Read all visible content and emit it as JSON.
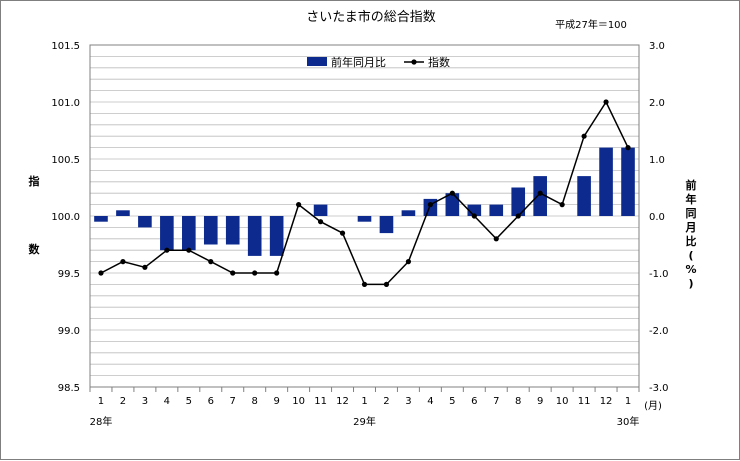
{
  "chart_data": {
    "type": "bar+line",
    "title": "さいたま市の総合指数",
    "subtitle": "平成27年＝100",
    "categories": [
      "1",
      "2",
      "3",
      "4",
      "5",
      "6",
      "7",
      "8",
      "9",
      "10",
      "11",
      "12",
      "1",
      "2",
      "3",
      "4",
      "5",
      "6",
      "7",
      "8",
      "9",
      "10",
      "11",
      "12",
      "1"
    ],
    "x_unit": "(月)",
    "year_labels": [
      {
        "label": "28年",
        "index": 0
      },
      {
        "label": "29年",
        "index": 12
      },
      {
        "label": "30年",
        "index": 24
      }
    ],
    "y_left": {
      "label": "指数",
      "min": 98.5,
      "max": 101.5,
      "ticks": [
        "98.5",
        "99.0",
        "99.5",
        "100.0",
        "100.5",
        "101.0",
        "101.5"
      ]
    },
    "y_right": {
      "label": "前年同月比(%)",
      "min": -3.0,
      "max": 3.0,
      "ticks": [
        "-3.0",
        "-2.0",
        "-1.0",
        "0.0",
        "1.0",
        "2.0",
        "3.0"
      ]
    },
    "series": [
      {
        "name": "前年同月比",
        "type": "bar",
        "axis": "right",
        "color": "#0d2b8f",
        "values": [
          -0.1,
          0.1,
          -0.2,
          -0.6,
          -0.6,
          -0.5,
          -0.5,
          -0.7,
          -0.7,
          0.0,
          0.2,
          0.0,
          -0.1,
          -0.3,
          0.1,
          0.3,
          0.4,
          0.2,
          0.2,
          0.5,
          0.7,
          0.0,
          0.7,
          1.2,
          1.2
        ]
      },
      {
        "name": "指数",
        "type": "line",
        "axis": "left",
        "color": "#000000",
        "values": [
          99.5,
          99.6,
          99.55,
          99.7,
          99.7,
          99.6,
          99.5,
          99.5,
          99.5,
          100.1,
          99.95,
          99.85,
          99.4,
          99.4,
          99.6,
          100.1,
          100.2,
          100.0,
          99.8,
          100.0,
          100.2,
          100.1,
          100.7,
          101.0,
          100.6
        ]
      }
    ],
    "grid": true,
    "legend": "top-center"
  }
}
